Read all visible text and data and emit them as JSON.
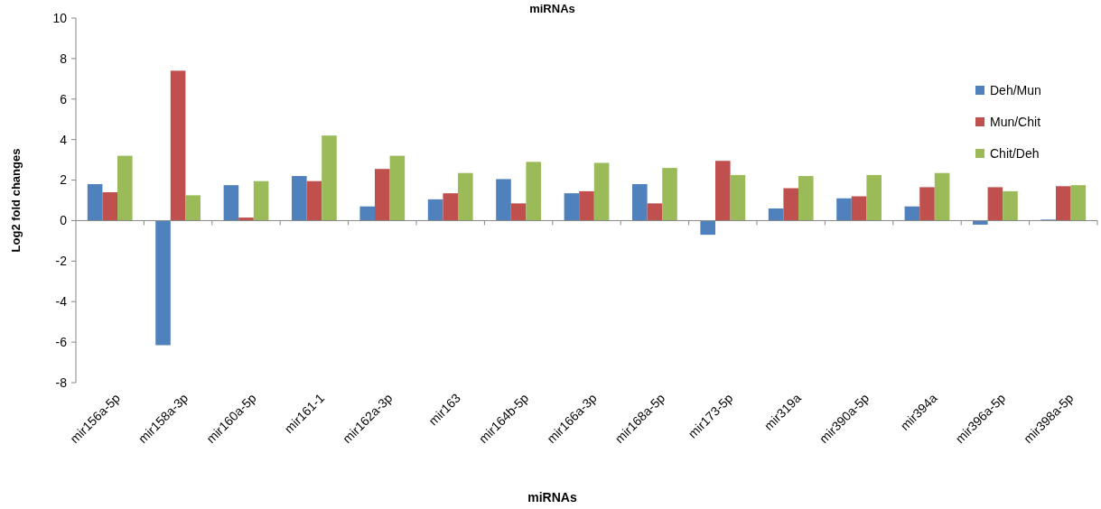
{
  "chart_data": {
    "type": "bar",
    "title": "miRNAs",
    "xlabel": "miRNAs",
    "ylabel": "Log2 fold changes",
    "categories": [
      "mir156a-5p",
      "mir158a-3p",
      "mir160a-5p",
      "mir161-1",
      "mir162a-3p",
      "mir163",
      "mir164b-5p",
      "mir166a-3p",
      "mir168a-5p",
      "mir173-5p",
      "mir319a",
      "mir390a-5p",
      "mir394a",
      "mir396a-5p",
      "mir398a-5p"
    ],
    "series": [
      {
        "name": "Deh/Mun",
        "color": "#4f81bd",
        "values": [
          1.8,
          -6.15,
          1.75,
          2.2,
          0.7,
          1.05,
          2.05,
          1.35,
          1.8,
          -0.7,
          0.6,
          1.1,
          0.7,
          -0.2,
          0.05
        ]
      },
      {
        "name": "Mun/Chit",
        "color": "#c0504d",
        "values": [
          1.4,
          7.4,
          0.15,
          1.95,
          2.55,
          1.35,
          0.85,
          1.45,
          0.85,
          2.95,
          1.6,
          1.2,
          1.65,
          1.65,
          1.7
        ]
      },
      {
        "name": "Chit/Deh",
        "color": "#9bbb59",
        "values": [
          3.2,
          1.25,
          1.95,
          4.2,
          3.2,
          2.35,
          2.9,
          2.85,
          2.6,
          2.25,
          2.2,
          2.25,
          2.35,
          1.45,
          1.75
        ]
      }
    ],
    "ylim": [
      -8,
      10
    ],
    "yticks": [
      -8,
      -6,
      -4,
      -2,
      0,
      2,
      4,
      6,
      8,
      10
    ],
    "legend": "top right"
  }
}
